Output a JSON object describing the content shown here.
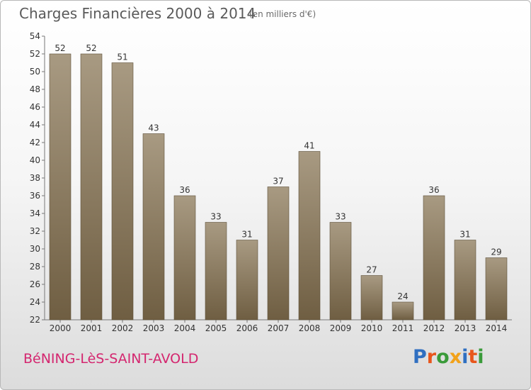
{
  "header": {
    "title": "Charges Financières 2000 à 2014",
    "subtitle": "(en milliers d'€)"
  },
  "footer": {
    "commune": "BéNING-LèS-SAINT-AVOLD",
    "logo": "Proxiti"
  },
  "chart_data": {
    "type": "bar",
    "title": "Charges Financières 2000 à 2014",
    "subtitle": "(en milliers d'€)",
    "xlabel": "",
    "ylabel": "",
    "categories": [
      "2000",
      "2001",
      "2002",
      "2003",
      "2004",
      "2005",
      "2006",
      "2007",
      "2008",
      "2009",
      "2010",
      "2011",
      "2012",
      "2013",
      "2014"
    ],
    "values": [
      52,
      52,
      51,
      43,
      36,
      33,
      31,
      37,
      41,
      33,
      27,
      24,
      36,
      31,
      29
    ],
    "ylim": [
      22,
      54
    ],
    "yticks": [
      22,
      24,
      26,
      28,
      30,
      32,
      34,
      36,
      38,
      40,
      42,
      44,
      46,
      48,
      50,
      52,
      54
    ],
    "grid": false,
    "colors": {
      "bar_top": "#a89a82",
      "bar_bottom": "#6f5e42",
      "label": "#333333",
      "commune": "#d4266f"
    }
  }
}
